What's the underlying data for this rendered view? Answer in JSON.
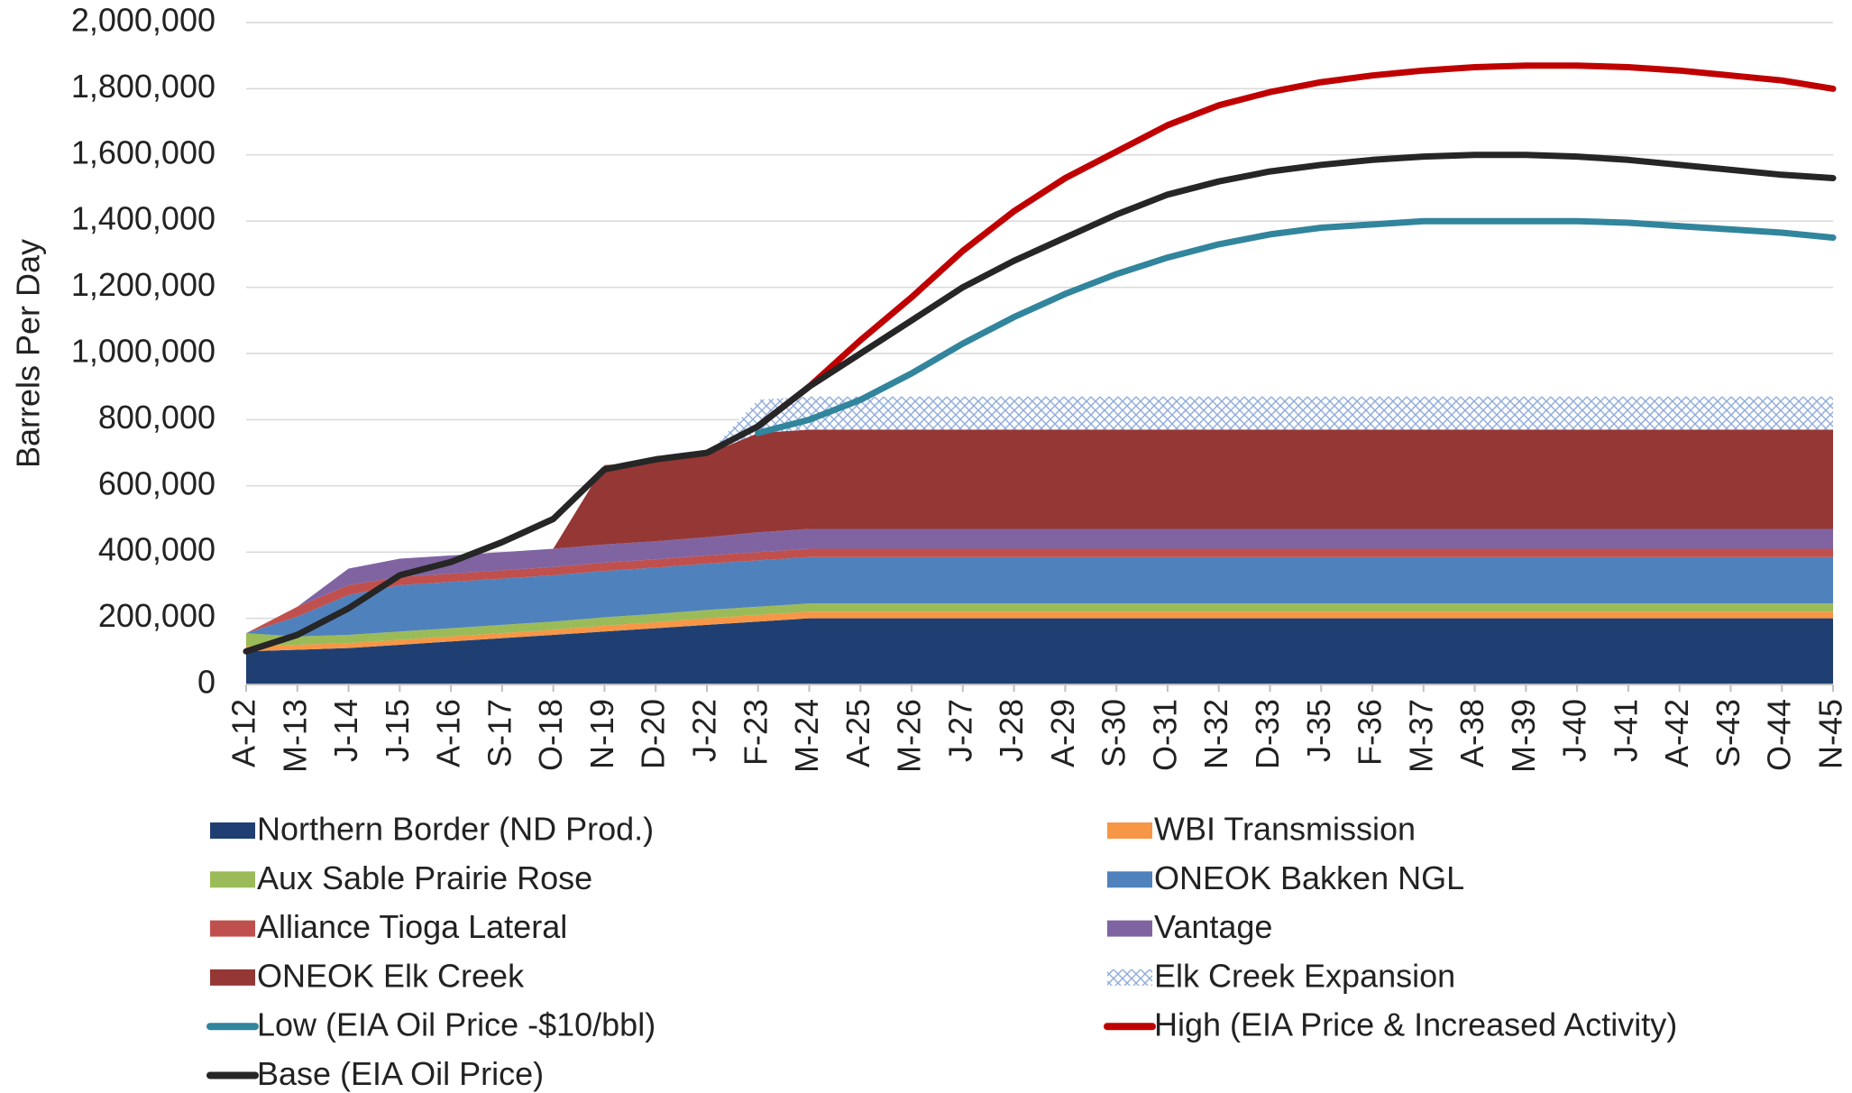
{
  "chart_data": {
    "type": "area",
    "y_label": "Barrels Per Day",
    "categories": [
      "A-12",
      "M-13",
      "J-14",
      "J-15",
      "A-16",
      "S-17",
      "O-18",
      "N-19",
      "D-20",
      "J-22",
      "F-23",
      "M-24",
      "A-25",
      "M-26",
      "J-27",
      "J-28",
      "A-29",
      "S-30",
      "O-31",
      "N-32",
      "D-33",
      "J-35",
      "F-36",
      "M-37",
      "A-38",
      "M-39",
      "J-40",
      "J-41",
      "A-42",
      "S-43",
      "O-44",
      "N-45"
    ],
    "ylim": [
      0,
      2000000
    ],
    "yticks": [
      0,
      {
        "value": 200000,
        "label": "200,000"
      },
      {
        "value": 400000,
        "label": "400,000"
      },
      {
        "value": 600000,
        "label": "600,000"
      },
      {
        "value": 800000,
        "label": "800,000"
      },
      {
        "value": 1000000,
        "label": "1,000,000"
      },
      {
        "value": 1200000,
        "label": "1,200,000"
      },
      {
        "value": 1400000,
        "label": "1,400,000"
      },
      {
        "value": 1600000,
        "label": "1,600,000"
      },
      {
        "value": 1800000,
        "label": "1,800,000"
      },
      {
        "value": 2000000,
        "label": "2,000,000"
      }
    ],
    "grid": true,
    "stacked": true,
    "series": [
      {
        "name": "Northern Border (ND Prod.)",
        "type": "area",
        "color": "#1f3f73",
        "values": [
          100000,
          105000,
          110000,
          120000,
          130000,
          140000,
          150000,
          160000,
          170000,
          180000,
          190000,
          200000,
          200000,
          200000,
          200000,
          200000,
          200000,
          200000,
          200000,
          200000,
          200000,
          200000,
          200000,
          200000,
          200000,
          200000,
          200000,
          200000,
          200000,
          200000,
          200000,
          200000
        ]
      },
      {
        "name": "WBI Transmission",
        "type": "area",
        "color": "#f79646",
        "values": [
          15000,
          15000,
          15000,
          15000,
          15000,
          15000,
          15000,
          18000,
          18000,
          20000,
          20000,
          20000,
          20000,
          20000,
          20000,
          20000,
          20000,
          20000,
          20000,
          20000,
          20000,
          20000,
          20000,
          20000,
          20000,
          20000,
          20000,
          20000,
          20000,
          20000,
          20000,
          20000
        ]
      },
      {
        "name": "Aux Sable Prairie Rose",
        "type": "area",
        "color": "#9bbb59",
        "values": [
          40000,
          25000,
          25000,
          25000,
          25000,
          25000,
          25000,
          25000,
          25000,
          25000,
          25000,
          25000,
          25000,
          25000,
          25000,
          25000,
          25000,
          25000,
          25000,
          25000,
          25000,
          25000,
          25000,
          25000,
          25000,
          25000,
          25000,
          25000,
          25000,
          25000,
          25000,
          25000
        ]
      },
      {
        "name": "ONEOK Bakken NGL",
        "type": "area",
        "color": "#4f81bd",
        "values": [
          0,
          60000,
          120000,
          140000,
          140000,
          140000,
          140000,
          140000,
          140000,
          140000,
          140000,
          140000,
          140000,
          140000,
          140000,
          140000,
          140000,
          140000,
          140000,
          140000,
          140000,
          140000,
          140000,
          140000,
          140000,
          140000,
          140000,
          140000,
          140000,
          140000,
          140000,
          140000
        ]
      },
      {
        "name": "Alliance Tioga Lateral",
        "type": "area",
        "color": "#c0504d",
        "values": [
          0,
          30000,
          30000,
          25000,
          25000,
          25000,
          25000,
          25000,
          25000,
          25000,
          25000,
          25000,
          25000,
          25000,
          25000,
          25000,
          25000,
          25000,
          25000,
          25000,
          25000,
          25000,
          25000,
          25000,
          25000,
          25000,
          25000,
          25000,
          25000,
          25000,
          25000,
          25000
        ]
      },
      {
        "name": "Vantage",
        "type": "area",
        "color": "#8064a2",
        "values": [
          0,
          0,
          50000,
          55000,
          55000,
          55000,
          55000,
          55000,
          55000,
          55000,
          60000,
          60000,
          60000,
          60000,
          60000,
          60000,
          60000,
          60000,
          60000,
          60000,
          60000,
          60000,
          60000,
          60000,
          60000,
          60000,
          60000,
          60000,
          60000,
          60000,
          60000,
          60000
        ]
      },
      {
        "name": "ONEOK Elk Creek",
        "type": "area",
        "color": "#953735",
        "values": [
          0,
          0,
          0,
          0,
          0,
          0,
          0,
          240000,
          240000,
          250000,
          300000,
          300000,
          300000,
          300000,
          300000,
          300000,
          300000,
          300000,
          300000,
          300000,
          300000,
          300000,
          300000,
          300000,
          300000,
          300000,
          300000,
          300000,
          300000,
          300000,
          300000,
          300000
        ]
      },
      {
        "name": "Elk Creek Expansion",
        "type": "area",
        "color": "#b8cce4",
        "pattern": "crosshatch",
        "values": [
          0,
          0,
          0,
          0,
          0,
          0,
          0,
          0,
          0,
          0,
          100000,
          100000,
          100000,
          100000,
          100000,
          100000,
          100000,
          100000,
          100000,
          100000,
          100000,
          100000,
          100000,
          100000,
          100000,
          100000,
          100000,
          100000,
          100000,
          100000,
          100000,
          100000
        ]
      },
      {
        "name": "Low (EIA Oil Price -$10/bbl)",
        "type": "line",
        "color": "#31859c",
        "values": [
          null,
          null,
          null,
          null,
          null,
          null,
          null,
          null,
          null,
          null,
          760000,
          800000,
          860000,
          940000,
          1030000,
          1110000,
          1180000,
          1240000,
          1290000,
          1330000,
          1360000,
          1380000,
          1390000,
          1400000,
          1400000,
          1400000,
          1400000,
          1395000,
          1385000,
          1375000,
          1365000,
          1350000
        ]
      },
      {
        "name": "High (EIA Price & Increased Activity)",
        "type": "line",
        "color": "#c00000",
        "values": [
          null,
          null,
          null,
          null,
          null,
          null,
          null,
          null,
          null,
          null,
          780000,
          900000,
          1040000,
          1170000,
          1310000,
          1430000,
          1530000,
          1610000,
          1690000,
          1750000,
          1790000,
          1820000,
          1840000,
          1855000,
          1865000,
          1870000,
          1870000,
          1865000,
          1855000,
          1840000,
          1825000,
          1800000
        ]
      },
      {
        "name": "Base (EIA Oil Price)",
        "type": "line",
        "color": "#262626",
        "values": [
          100000,
          150000,
          230000,
          330000,
          370000,
          430000,
          500000,
          650000,
          680000,
          700000,
          780000,
          900000,
          1000000,
          1100000,
          1200000,
          1280000,
          1350000,
          1420000,
          1480000,
          1520000,
          1550000,
          1570000,
          1585000,
          1595000,
          1600000,
          1600000,
          1595000,
          1585000,
          1570000,
          1555000,
          1540000,
          1530000
        ]
      }
    ]
  }
}
